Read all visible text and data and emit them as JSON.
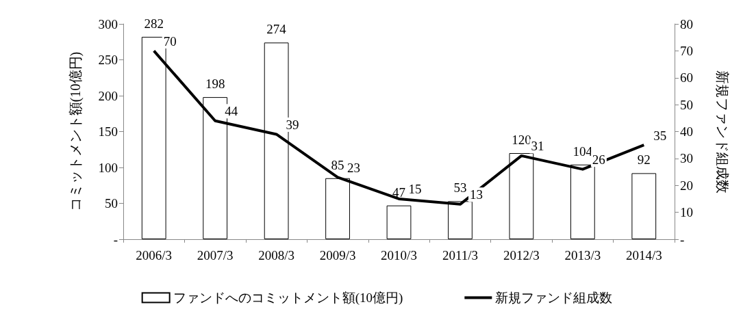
{
  "chart_data": {
    "type": "bar",
    "categories": [
      "2006/3",
      "2007/3",
      "2008/3",
      "2009/3",
      "2010/3",
      "2011/3",
      "2012/3",
      "2013/3",
      "2014/3"
    ],
    "series": [
      {
        "name": "ファンドへのコミットメント額(10億円)",
        "color": "#ffffff",
        "values": [
          282,
          198,
          274,
          85,
          47,
          53,
          120,
          104,
          92
        ]
      },
      {
        "name": "新規ファンド組成数",
        "type": "line",
        "axis": "y2",
        "color": "#000000",
        "values": [
          70,
          44,
          39,
          23,
          15,
          13,
          31,
          26,
          35
        ]
      }
    ],
    "ylabel": "コミットメント額(10億円)",
    "y2label": "新規ファンド組成数",
    "ylim": [
      0,
      300
    ],
    "yticks": [
      {
        "value": 0,
        "label": "-"
      },
      50,
      100,
      150,
      200,
      250,
      300
    ],
    "y2lim": [
      0,
      80
    ],
    "y2ticks": [
      {
        "value": 0,
        "label": "-"
      },
      10,
      20,
      30,
      40,
      50,
      60,
      70,
      80
    ],
    "data_labels": true,
    "legend": "bottom",
    "marker": "none",
    "line_style": "solid",
    "grid": false
  }
}
